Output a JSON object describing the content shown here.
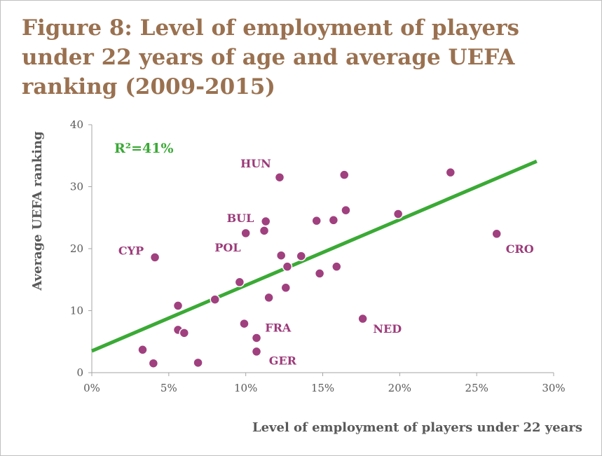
{
  "chart_data": {
    "type": "scatter",
    "title": "Figure 8: Level of employment of players under 22 years of age and average UEFA ranking (2009-2015)",
    "xlabel": "Level of employment of players under 22 years",
    "ylabel": "Average UEFA ranking",
    "xlim": [
      0,
      30
    ],
    "ylim": [
      0,
      40
    ],
    "x_ticks": [
      "0%",
      "5%",
      "10%",
      "15%",
      "20%",
      "25%",
      "30%"
    ],
    "y_ticks": [
      "0",
      "10",
      "20",
      "30",
      "40"
    ],
    "grid": false,
    "colors": {
      "points": "#a0407f",
      "trendline": "#3aaa35",
      "title": "#9a7150",
      "labels": "#9c3a7a"
    },
    "points": [
      {
        "x": 3.3,
        "y": 3.7
      },
      {
        "x": 4.0,
        "y": 1.5
      },
      {
        "x": 4.1,
        "y": 18.6
      },
      {
        "x": 5.6,
        "y": 10.8
      },
      {
        "x": 5.6,
        "y": 6.9
      },
      {
        "x": 6.0,
        "y": 6.4
      },
      {
        "x": 6.9,
        "y": 1.6
      },
      {
        "x": 8.0,
        "y": 11.8
      },
      {
        "x": 9.6,
        "y": 14.6
      },
      {
        "x": 10.0,
        "y": 22.5
      },
      {
        "x": 9.9,
        "y": 7.9
      },
      {
        "x": 11.2,
        "y": 22.9
      },
      {
        "x": 11.3,
        "y": 24.4
      },
      {
        "x": 10.7,
        "y": 5.6
      },
      {
        "x": 10.7,
        "y": 3.4
      },
      {
        "x": 11.5,
        "y": 12.1
      },
      {
        "x": 12.2,
        "y": 31.5
      },
      {
        "x": 12.3,
        "y": 18.9
      },
      {
        "x": 12.7,
        "y": 17.1
      },
      {
        "x": 12.6,
        "y": 13.7
      },
      {
        "x": 13.6,
        "y": 18.8
      },
      {
        "x": 14.6,
        "y": 24.5
      },
      {
        "x": 14.8,
        "y": 16.0
      },
      {
        "x": 15.7,
        "y": 24.6
      },
      {
        "x": 15.9,
        "y": 17.1
      },
      {
        "x": 16.4,
        "y": 31.9
      },
      {
        "x": 16.5,
        "y": 26.2
      },
      {
        "x": 17.6,
        "y": 8.7
      },
      {
        "x": 19.9,
        "y": 25.6
      },
      {
        "x": 23.3,
        "y": 32.3
      },
      {
        "x": 26.3,
        "y": 22.4
      }
    ],
    "trendline": {
      "x": [
        0,
        28.9
      ],
      "y": [
        3.5,
        34.1
      ]
    },
    "r_squared_label": "R²=41%",
    "annotations": [
      {
        "text": "HUN",
        "x": 10.65,
        "y": 33.8
      },
      {
        "text": "BUL",
        "x": 9.65,
        "y": 25.0
      },
      {
        "text": "POL",
        "x": 8.83,
        "y": 20.2
      },
      {
        "text": "CYP",
        "x": 2.55,
        "y": 19.7
      },
      {
        "text": "CRO",
        "x": 27.8,
        "y": 20.0
      },
      {
        "text": "NED",
        "x": 19.2,
        "y": 7.1
      },
      {
        "text": "FRA",
        "x": 12.1,
        "y": 7.3
      },
      {
        "text": "GER",
        "x": 12.4,
        "y": 2.0
      }
    ]
  }
}
